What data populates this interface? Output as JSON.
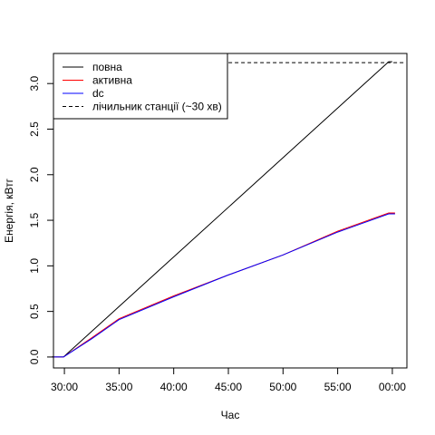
{
  "chart_data": {
    "type": "line",
    "title": "",
    "xlabel": "Час",
    "ylabel": "Енергія, кВтг",
    "xlim": [
      "29:00",
      "01:20"
    ],
    "ylim": [
      -0.12,
      3.33
    ],
    "x_ticks": [
      "30:00",
      "35:00",
      "40:00",
      "45:00",
      "50:00",
      "55:00",
      "00:00"
    ],
    "y_ticks": [
      "0.0",
      "0.5",
      "1.0",
      "1.5",
      "2.0",
      "2.5",
      "3.0"
    ],
    "grid": false,
    "legend_position": "top-left",
    "series": [
      {
        "name": "повна",
        "color": "#000000",
        "dash": "solid",
        "points": [
          [
            "28:52",
            0.0
          ],
          [
            "29:55",
            0.0
          ],
          [
            "59:40",
            3.24
          ],
          [
            "00:00",
            3.24
          ]
        ]
      },
      {
        "name": "активна",
        "color": "#ff0000",
        "dash": "solid",
        "points": [
          [
            "28:52",
            0.0
          ],
          [
            "29:55",
            0.0
          ],
          [
            "32:30",
            0.21
          ],
          [
            "35:00",
            0.42
          ],
          [
            "40:00",
            0.67
          ],
          [
            "45:00",
            0.9
          ],
          [
            "50:00",
            1.12
          ],
          [
            "55:00",
            1.38
          ],
          [
            "59:40",
            1.58
          ],
          [
            "00:15",
            1.58
          ]
        ]
      },
      {
        "name": "dc",
        "color": "#0000ff",
        "dash": "solid",
        "points": [
          [
            "28:52",
            0.0
          ],
          [
            "29:55",
            0.0
          ],
          [
            "32:30",
            0.2
          ],
          [
            "35:00",
            0.41
          ],
          [
            "40:00",
            0.66
          ],
          [
            "45:00",
            0.9
          ],
          [
            "50:00",
            1.12
          ],
          [
            "55:00",
            1.37
          ],
          [
            "59:40",
            1.57
          ],
          [
            "00:15",
            1.57
          ]
        ]
      },
      {
        "name": "лічильник станції (~30 хв)",
        "color": "#000000",
        "dash": "dashed",
        "points": [
          [
            "29:55",
            3.23
          ],
          [
            "01:15",
            3.23
          ]
        ]
      }
    ]
  }
}
